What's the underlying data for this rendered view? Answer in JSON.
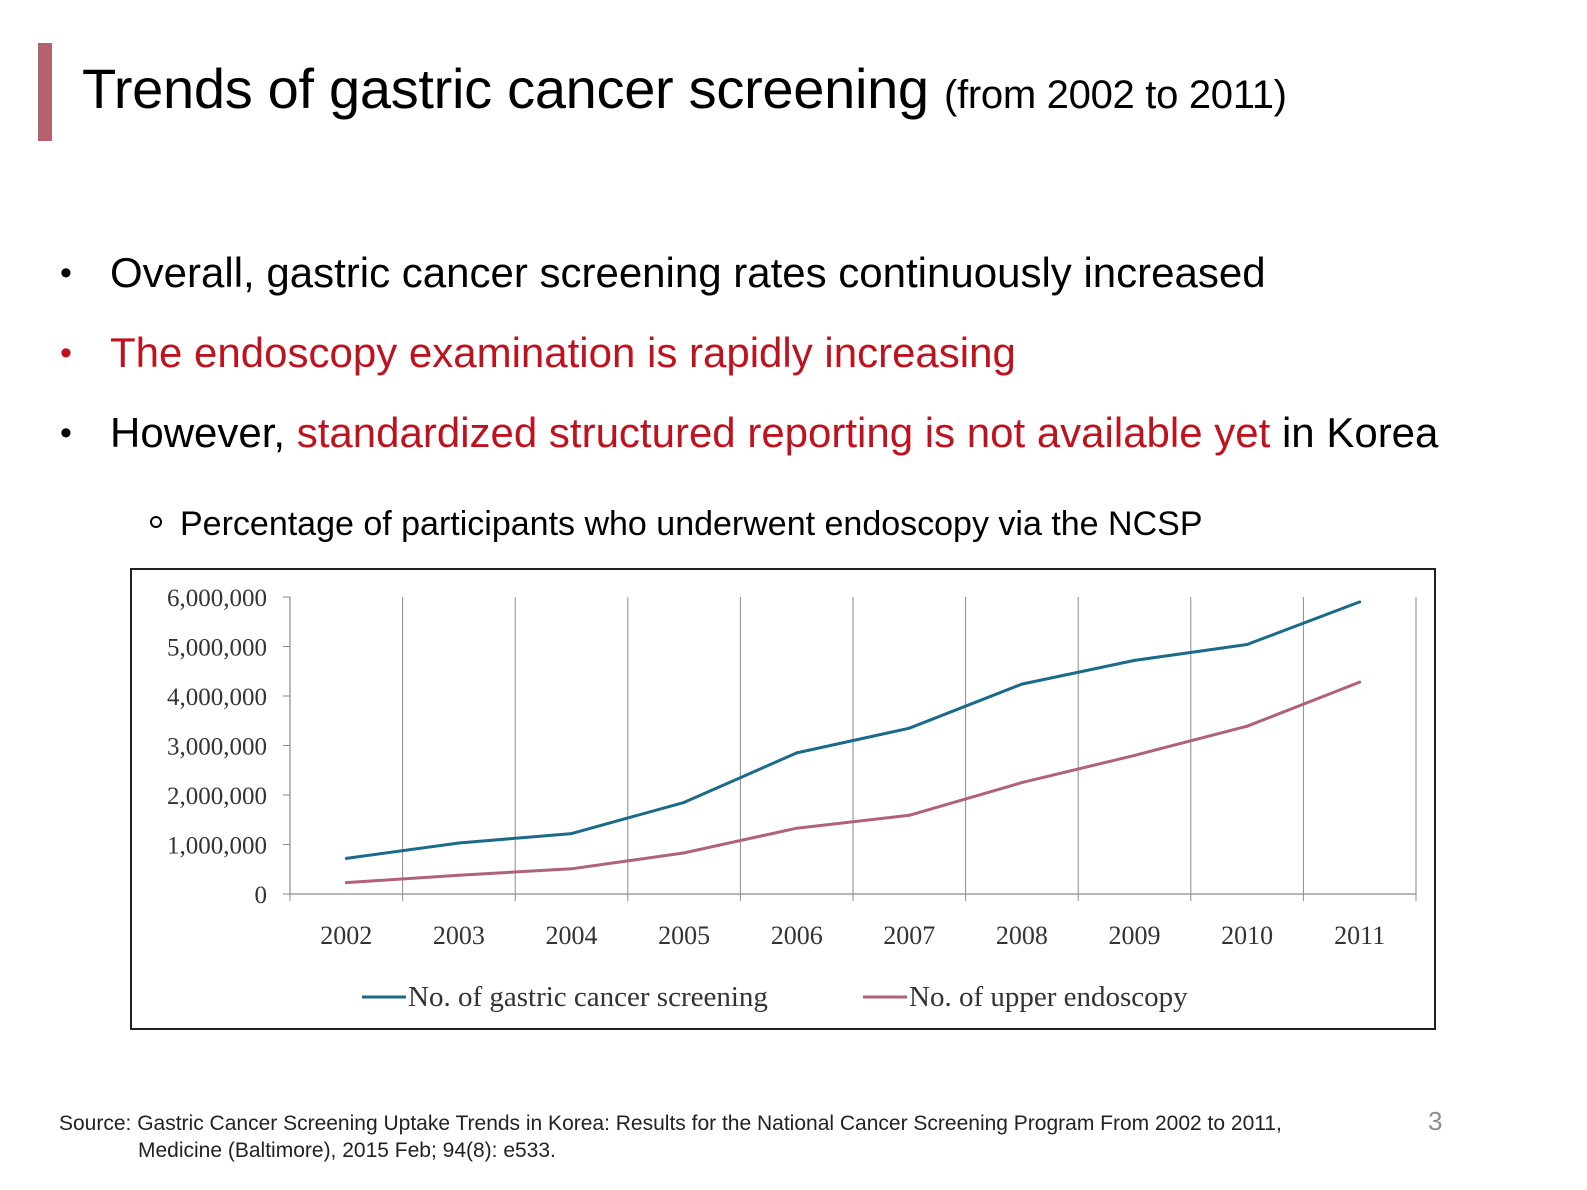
{
  "slide": {
    "title": "Trends of gastric cancer screening",
    "title_suffix": "(from 2002 to 2011)",
    "accent_color": "#b5626f",
    "highlight_color": "#c0121e",
    "page_number": "3"
  },
  "bullets": [
    {
      "marker": "•",
      "text": "Overall, gastric cancer screening rates continuously increased"
    },
    {
      "marker": "•",
      "text": "The endoscopy examination is rapidly increasing"
    },
    {
      "marker": "•",
      "text_prefix": "However, ",
      "text_highlight": "standardized structured reporting is not available yet",
      "text_suffix": " in Korea"
    }
  ],
  "sub_bullet": "Percentage of participants who underwent endoscopy via the NCSP",
  "chart_data": {
    "type": "line",
    "title": "",
    "xlabel": "",
    "ylabel": "",
    "x": [
      "2002",
      "2003",
      "2004",
      "2005",
      "2006",
      "2007",
      "2008",
      "2009",
      "2010",
      "2011"
    ],
    "ylim": [
      0,
      6000000
    ],
    "yticks": [
      0,
      1000000,
      2000000,
      3000000,
      4000000,
      5000000,
      6000000
    ],
    "ytick_labels": [
      "0",
      "1,000,000",
      "2,000,000",
      "3,000,000",
      "4,000,000",
      "5,000,000",
      "6,000,000"
    ],
    "grid": "vertical",
    "legend_position": "bottom",
    "series": [
      {
        "name": "No. of gastric cancer screening",
        "color": "#1a6a8a",
        "values": [
          720000,
          1030000,
          1220000,
          1850000,
          2850000,
          3350000,
          4240000,
          4720000,
          5040000,
          5900000
        ]
      },
      {
        "name": "No. of upper endoscopy",
        "color": "#b06278",
        "values": [
          230000,
          380000,
          510000,
          830000,
          1330000,
          1590000,
          2250000,
          2800000,
          3390000,
          4280000
        ]
      }
    ]
  },
  "source": {
    "line1": "Source: Gastric Cancer Screening Uptake Trends in Korea: Results for the National Cancer Screening Program From 2002 to 2011,",
    "line2": "Medicine (Baltimore), 2015 Feb; 94(8): e533."
  }
}
